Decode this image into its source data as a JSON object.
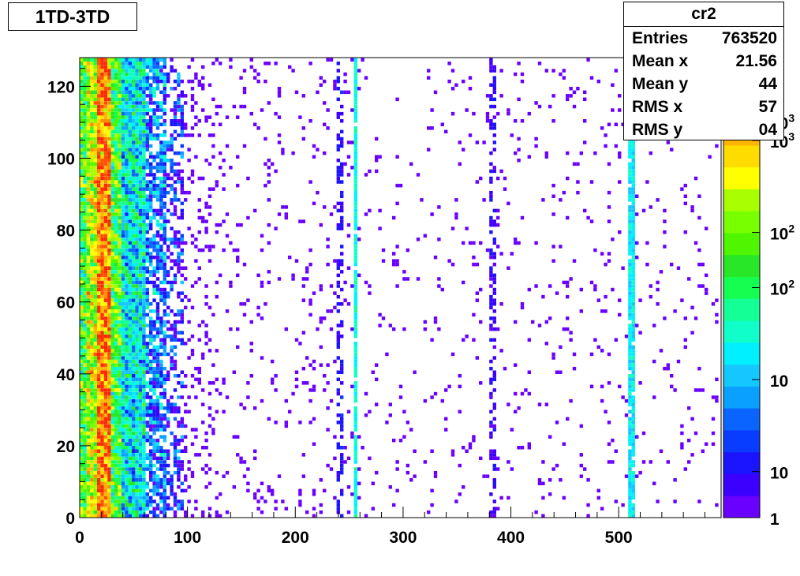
{
  "title": "1TD-3TD",
  "stats": {
    "name": "cr2",
    "rows": [
      {
        "label": "Entries",
        "value": "763520"
      },
      {
        "label": "Mean x",
        "value": "21.56"
      },
      {
        "label": "Mean y",
        "value": "44"
      },
      {
        "label": "RMS x",
        "value": "57"
      },
      {
        "label": "RMS y",
        "value": "04"
      }
    ]
  },
  "chart_data": {
    "type": "heatmap",
    "title": "1TD-3TD",
    "xlabel": "",
    "ylabel": "",
    "xlim": [
      0,
      595
    ],
    "ylim": [
      0,
      128
    ],
    "x_ticks": [
      0,
      100,
      200,
      300,
      400,
      500
    ],
    "y_ticks": [
      0,
      20,
      40,
      60,
      80,
      100,
      120
    ],
    "colorbar_labels": [
      {
        "text": "1",
        "level": 0
      },
      {
        "text": "10",
        "level": 0.1
      },
      {
        "text": "10",
        "level": 0.3
      },
      {
        "text": "10",
        "sup": "2",
        "level": 0.5
      },
      {
        "text": "10",
        "sup": "2",
        "level": 0.62
      },
      {
        "text": "10",
        "sup": "3",
        "level": 0.82
      },
      {
        "text": "10",
        "sup": "3",
        "level": 0.86
      }
    ],
    "palette": [
      "#6a00ff",
      "#3c00ff",
      "#1a14ff",
      "#0a3cff",
      "#0a64ff",
      "#0aa0ff",
      "#14c8ff",
      "#00f0ff",
      "#10ffc8",
      "#14ff96",
      "#14ff50",
      "#28e628",
      "#50f500",
      "#78ff00",
      "#a8ff00",
      "#ffff00",
      "#ffdc00",
      "#ffb400",
      "#ff8c00",
      "#ff5000",
      "#ff2800"
    ],
    "bands": [
      {
        "x": [
          0,
          5
        ],
        "intensity": 0.55
      },
      {
        "x": [
          5,
          15
        ],
        "intensity": 0.7
      },
      {
        "x": [
          15,
          30
        ],
        "intensity": 0.92
      },
      {
        "x": [
          30,
          40
        ],
        "intensity": 0.55
      },
      {
        "x": [
          40,
          60
        ],
        "intensity": 0.35
      },
      {
        "x": [
          60,
          80
        ],
        "intensity": 0.2
      },
      {
        "x": [
          80,
          95
        ],
        "intensity": 0.1
      }
    ],
    "stripes": [
      {
        "x": 256,
        "intensity": 0.38
      },
      {
        "x": 512,
        "intensity": 0.35
      },
      {
        "x": 242,
        "intensity": 0.08
      },
      {
        "x": 384,
        "intensity": 0.06
      }
    ]
  }
}
